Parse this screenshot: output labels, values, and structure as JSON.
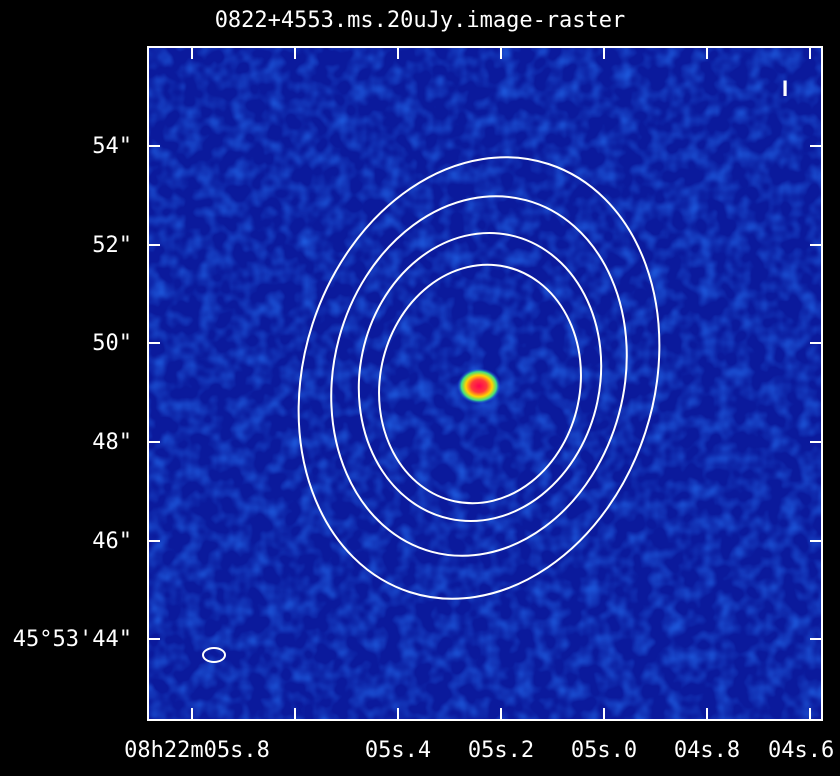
{
  "title": "0822+4553.ms.20uJy.image-raster",
  "corner_marker": "I",
  "colormap": {
    "background": "#0d1fa8",
    "peak": "#ff1060",
    "contour": "#ffffff"
  },
  "y_axis": {
    "ticks": [
      {
        "label": "54\"",
        "arcsec": 54
      },
      {
        "label": "52\"",
        "arcsec": 52
      },
      {
        "label": "50\"",
        "arcsec": 50
      },
      {
        "label": "48\"",
        "arcsec": 48
      },
      {
        "label": "46\"",
        "arcsec": 46
      },
      {
        "label": "45°53'44\"",
        "arcsec": 44
      }
    ]
  },
  "x_axis": {
    "ticks": [
      {
        "label": "08h22m05s.8",
        "sec": 5.8
      },
      {
        "label": "05s.4",
        "sec": 5.4
      },
      {
        "label": "05s.2",
        "sec": 5.2
      },
      {
        "label": "05s.0",
        "sec": 5.0
      },
      {
        "label": "04s.8",
        "sec": 4.8
      },
      {
        "label": "04s.6",
        "sec": 4.6
      }
    ]
  },
  "source": {
    "label": "compact source"
  },
  "beam": {
    "label": "beam"
  }
}
